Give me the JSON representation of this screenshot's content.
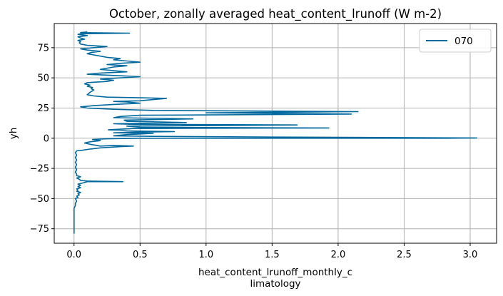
{
  "chart_data": {
    "type": "line",
    "title": "October, zonally averaged heat_content_lrunoff (W m-2)",
    "xlabel_lines": [
      "heat_content_lrunoff_monthly_c",
      "limatology"
    ],
    "ylabel": "yh",
    "xlim": [
      -0.15,
      3.2
    ],
    "ylim": [
      -87,
      95
    ],
    "xticks": [
      0.0,
      0.5,
      1.0,
      1.5,
      2.0,
      2.5,
      3.0
    ],
    "xtick_labels": [
      "0.0",
      "0.5",
      "1.0",
      "1.5",
      "2.0",
      "2.5",
      "3.0"
    ],
    "yticks": [
      -75,
      -50,
      -25,
      0,
      25,
      50,
      75
    ],
    "ytick_labels": [
      "−75",
      "−50",
      "−25",
      "0",
      "25",
      "50",
      "75"
    ],
    "grid": true,
    "legend_position": "top-right",
    "series": [
      {
        "name": "070",
        "color": "#00689d",
        "points": [
          [
            0.0,
            -79
          ],
          [
            0.0,
            -75
          ],
          [
            0.0,
            -70
          ],
          [
            0.0,
            -65
          ],
          [
            0.0,
            -60
          ],
          [
            0.0,
            -58
          ],
          [
            0.01,
            -56
          ],
          [
            0.01,
            -54
          ],
          [
            0.02,
            -52
          ],
          [
            0.01,
            -50
          ],
          [
            0.03,
            -49
          ],
          [
            0.02,
            -48
          ],
          [
            0.04,
            -47
          ],
          [
            0.03,
            -46
          ],
          [
            0.05,
            -45
          ],
          [
            0.02,
            -44
          ],
          [
            0.03,
            -43
          ],
          [
            0.02,
            -42
          ],
          [
            0.05,
            -41
          ],
          [
            0.03,
            -40
          ],
          [
            0.05,
            -39
          ],
          [
            0.03,
            -38
          ],
          [
            0.07,
            -37
          ],
          [
            0.1,
            -36
          ],
          [
            0.37,
            -36
          ],
          [
            0.1,
            -35.5
          ],
          [
            0.05,
            -35
          ],
          [
            0.04,
            -34
          ],
          [
            0.02,
            -33
          ],
          [
            0.05,
            -32
          ],
          [
            0.02,
            -31
          ],
          [
            0.02,
            -30
          ],
          [
            0.01,
            -28
          ],
          [
            0.02,
            -26
          ],
          [
            0.01,
            -24
          ],
          [
            0.02,
            -22
          ],
          [
            0.01,
            -20
          ],
          [
            0.02,
            -18
          ],
          [
            0.01,
            -16
          ],
          [
            0.02,
            -14
          ],
          [
            0.01,
            -12
          ],
          [
            0.02,
            -10.5
          ],
          [
            0.06,
            -10
          ],
          [
            0.12,
            -9
          ],
          [
            0.2,
            -8
          ],
          [
            0.35,
            -7
          ],
          [
            0.45,
            -6.5
          ],
          [
            0.3,
            -6
          ],
          [
            0.2,
            -6.5
          ],
          [
            0.12,
            -5
          ],
          [
            0.08,
            -4
          ],
          [
            0.12,
            -3
          ],
          [
            0.2,
            -2
          ],
          [
            0.14,
            -1
          ],
          [
            0.25,
            -0.5
          ],
          [
            0.5,
            0
          ],
          [
            2.83,
            0
          ],
          [
            3.05,
            0.2
          ],
          [
            1.4,
            1
          ],
          [
            0.6,
            1.5
          ],
          [
            0.3,
            2
          ],
          [
            0.4,
            3
          ],
          [
            0.6,
            4
          ],
          [
            0.3,
            4.5
          ],
          [
            0.5,
            5
          ],
          [
            0.76,
            5.5
          ],
          [
            0.4,
            6
          ],
          [
            0.26,
            7
          ],
          [
            0.45,
            8
          ],
          [
            1.93,
            8.5
          ],
          [
            0.5,
            9
          ],
          [
            0.4,
            10
          ],
          [
            1.69,
            11
          ],
          [
            0.45,
            11.5
          ],
          [
            0.3,
            12
          ],
          [
            0.85,
            13
          ],
          [
            0.4,
            14
          ],
          [
            0.38,
            15
          ],
          [
            0.9,
            16
          ],
          [
            0.3,
            17
          ],
          [
            0.35,
            18
          ],
          [
            0.5,
            19
          ],
          [
            2.1,
            20
          ],
          [
            1.0,
            21
          ],
          [
            2.15,
            22
          ],
          [
            0.6,
            23
          ],
          [
            0.3,
            24
          ],
          [
            0.1,
            25
          ],
          [
            0.05,
            26
          ],
          [
            0.15,
            27
          ],
          [
            0.3,
            28
          ],
          [
            0.5,
            29
          ],
          [
            0.4,
            30
          ],
          [
            0.3,
            30.5
          ],
          [
            0.5,
            31
          ],
          [
            0.6,
            32
          ],
          [
            0.7,
            33
          ],
          [
            0.5,
            33.5
          ],
          [
            0.25,
            34
          ],
          [
            0.15,
            35
          ],
          [
            0.1,
            36
          ],
          [
            0.12,
            38
          ],
          [
            0.15,
            40
          ],
          [
            0.13,
            41
          ],
          [
            0.14,
            42
          ],
          [
            0.1,
            43
          ],
          [
            0.12,
            44
          ],
          [
            0.08,
            45
          ],
          [
            0.1,
            46
          ],
          [
            0.25,
            47
          ],
          [
            0.3,
            48
          ],
          [
            0.2,
            49
          ],
          [
            0.35,
            50
          ],
          [
            0.5,
            51
          ],
          [
            0.3,
            52
          ],
          [
            0.1,
            53
          ],
          [
            0.2,
            54
          ],
          [
            0.4,
            55
          ],
          [
            0.3,
            56
          ],
          [
            0.2,
            57
          ],
          [
            0.25,
            58
          ],
          [
            0.3,
            59
          ],
          [
            0.4,
            60
          ],
          [
            0.25,
            61
          ],
          [
            0.35,
            62
          ],
          [
            0.5,
            63
          ],
          [
            0.4,
            64
          ],
          [
            0.3,
            65
          ],
          [
            0.35,
            66
          ],
          [
            0.25,
            67
          ],
          [
            0.2,
            68
          ],
          [
            0.15,
            69
          ],
          [
            0.1,
            70
          ],
          [
            0.13,
            71
          ],
          [
            0.2,
            72
          ],
          [
            0.1,
            73
          ],
          [
            0.05,
            74
          ],
          [
            0.15,
            75
          ],
          [
            0.25,
            76
          ],
          [
            0.1,
            77
          ],
          [
            0.05,
            78
          ],
          [
            0.04,
            79
          ],
          [
            0.05,
            80
          ],
          [
            0.03,
            81
          ],
          [
            0.08,
            82
          ],
          [
            0.05,
            83
          ],
          [
            0.03,
            84
          ],
          [
            0.1,
            85
          ],
          [
            0.03,
            86
          ],
          [
            0.05,
            86.5
          ],
          [
            0.42,
            87
          ],
          [
            0.05,
            87.5
          ],
          [
            0.1,
            88
          ]
        ]
      }
    ]
  }
}
